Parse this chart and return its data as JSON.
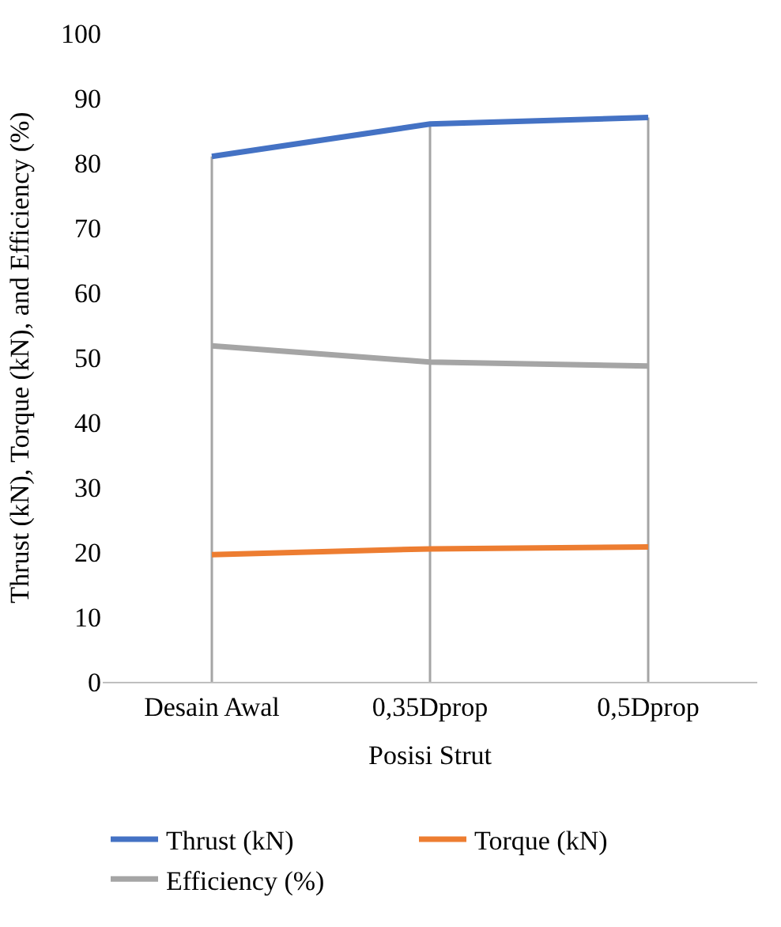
{
  "chart_data": {
    "type": "line",
    "xlabel": "Posisi Strut",
    "ylabel": "Thrust (kN), Torque (kN), and Efficiency (%)",
    "categories": [
      "Desain Awal",
      "0,35Dprop",
      "0,5Dprop"
    ],
    "series": [
      {
        "name": "Thrust (kN)",
        "color": "#4472c4",
        "values": [
          81,
          86,
          87
        ]
      },
      {
        "name": "Torque (kN)",
        "color": "#ed7d31",
        "values": [
          19.6,
          20.5,
          20.8
        ]
      },
      {
        "name": "Efficiency (%)",
        "color": "#a5a5a5",
        "values": [
          51.8,
          49.3,
          48.7
        ]
      }
    ],
    "ref_lines": [
      {
        "axis": "x",
        "value": "Desain Awal",
        "color": "#a5a5a5"
      },
      {
        "axis": "x",
        "value": "0,35Dprop",
        "color": "#a5a5a5"
      },
      {
        "axis": "x",
        "value": "0,5Dprop",
        "color": "#a5a5a5"
      }
    ],
    "ylim": [
      0,
      100
    ],
    "yticks": [
      0,
      10,
      20,
      30,
      40,
      50,
      60,
      70,
      80,
      90,
      100
    ],
    "grid": false,
    "legend": "bottom",
    "marker": "none",
    "line_style": "solid"
  }
}
